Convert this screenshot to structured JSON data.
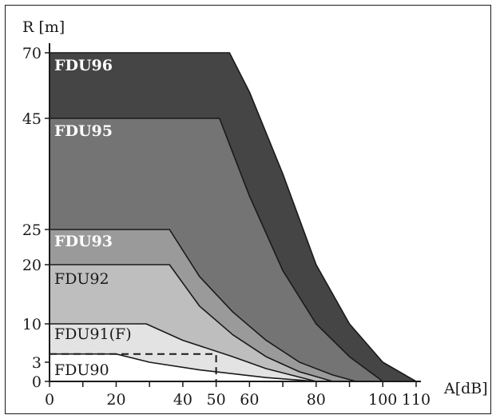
{
  "chart_data": {
    "type": "area",
    "title": "",
    "xlabel": "A[dB]",
    "ylabel": "R [m]",
    "x_ticks": [
      0,
      20,
      40,
      50,
      60,
      80,
      100,
      110
    ],
    "x_tick_labels": [
      "0",
      "20",
      "40",
      "50",
      "60",
      "80",
      "100",
      "110"
    ],
    "y_ticks": [
      0,
      3,
      10,
      20,
      25,
      45,
      70
    ],
    "y_tick_labels": [
      "0",
      "3",
      "10",
      "20",
      "25",
      "45",
      "70"
    ],
    "grid": false,
    "series": [
      {
        "name": "FDU96",
        "color": "#454545",
        "label_color": "#ffffff",
        "bold": true,
        "points": [
          [
            0,
            70
          ],
          [
            54,
            70
          ],
          [
            60,
            55
          ],
          [
            70,
            35
          ],
          [
            80,
            20
          ],
          [
            90,
            10
          ],
          [
            100,
            3
          ],
          [
            110,
            0
          ]
        ]
      },
      {
        "name": "FDU95",
        "color": "#747474",
        "label_color": "#ffffff",
        "bold": true,
        "points": [
          [
            0,
            45
          ],
          [
            51,
            45
          ],
          [
            60,
            31
          ],
          [
            70,
            19
          ],
          [
            80,
            10
          ],
          [
            90,
            4
          ],
          [
            100,
            0
          ]
        ]
      },
      {
        "name": "FDU93",
        "color": "#9a9a9a",
        "label_color": "#ffffff",
        "bold": true,
        "points": [
          [
            0,
            25
          ],
          [
            36,
            25
          ],
          [
            45,
            18
          ],
          [
            55,
            12
          ],
          [
            65,
            7
          ],
          [
            75,
            3
          ],
          [
            85,
            1
          ],
          [
            92,
            0
          ]
        ]
      },
      {
        "name": "FDU92",
        "color": "#bebebe",
        "label_color": "#1a1a1a",
        "bold": false,
        "points": [
          [
            0,
            20
          ],
          [
            36,
            20
          ],
          [
            45,
            13
          ],
          [
            55,
            8
          ],
          [
            65,
            4
          ],
          [
            75,
            1.5
          ],
          [
            85,
            0
          ]
        ]
      },
      {
        "name": "FDU91(F)",
        "color": "#e3e3e3",
        "label_color": "#1a1a1a",
        "bold": false,
        "points": [
          [
            0,
            10
          ],
          [
            29,
            10
          ],
          [
            40,
            7
          ],
          [
            55,
            4
          ],
          [
            65,
            2
          ],
          [
            80,
            0
          ]
        ]
      },
      {
        "name": "FDU90",
        "color": "#ffffff",
        "label_color": "#1a1a1a",
        "bold": false,
        "points": [
          [
            0,
            4.5
          ],
          [
            20,
            4.5
          ],
          [
            30,
            3
          ],
          [
            45,
            1.8
          ],
          [
            65,
            0.6
          ],
          [
            80,
            0
          ]
        ]
      }
    ],
    "annotations": [
      {
        "type": "dashed-line",
        "points": [
          [
            0,
            4.5
          ],
          [
            50,
            4.5
          ],
          [
            50,
            0
          ]
        ]
      }
    ]
  }
}
